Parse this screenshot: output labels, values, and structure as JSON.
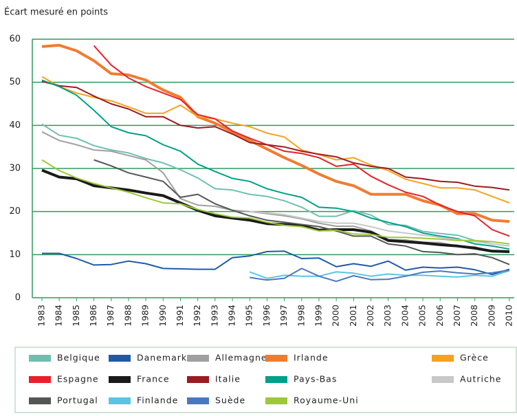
{
  "chart_data": {
    "type": "line",
    "title": "Écart mesuré en points",
    "categories": [
      "1983",
      "1984",
      "1985",
      "1986",
      "1987",
      "1988",
      "1989",
      "1990",
      "1991",
      "1992",
      "1993",
      "1994",
      "1995",
      "1996",
      "1997",
      "1998",
      "1999",
      "2000",
      "2001",
      "2002",
      "2003",
      "2004",
      "2005",
      "2006",
      "2007",
      "2008",
      "2009",
      "2010"
    ],
    "ylim": [
      0,
      60
    ],
    "yticks": [
      0,
      10,
      20,
      30,
      40,
      50,
      60
    ],
    "grid": true,
    "series": [
      {
        "name": "Belgique",
        "color": "#6fbfb0",
        "width": 2,
        "values": [
          40.3,
          37.7,
          37,
          35.3,
          34.3,
          33.6,
          32.3,
          31.3,
          29.7,
          27.8,
          25.3,
          25,
          24,
          23.5,
          22.5,
          21,
          18.9,
          18.9,
          20.2,
          19.2,
          17,
          16.8,
          15.4,
          14.9,
          14.5,
          13.3,
          12.5,
          12.0
        ]
      },
      {
        "name": "Danemark",
        "color": "#1f5aa6",
        "width": 2,
        "values": [
          10.3,
          10.3,
          9.1,
          7.6,
          7.7,
          8.5,
          7.9,
          6.8,
          6.7,
          6.6,
          6.6,
          9.3,
          9.7,
          10.7,
          10.8,
          9.1,
          9.2,
          7.2,
          7.9,
          7.3,
          8.5,
          6.4,
          7.1,
          6.9,
          7.1,
          6.5,
          5.4,
          6.6
        ]
      },
      {
        "name": "Allemagne",
        "color": "#a0a0a0",
        "width": 2,
        "values": [
          38.5,
          36.5,
          35.5,
          34.3,
          34,
          33,
          32,
          29,
          23,
          21.5,
          21.2,
          20.3,
          20,
          19.5,
          19,
          18.3,
          17.3,
          16.6,
          16.6,
          15.5,
          13.5,
          13.4,
          12.9,
          12.8,
          12,
          11.8,
          10.7,
          10.5
        ]
      },
      {
        "name": "Irlande",
        "color": "#f07c30",
        "width": 4,
        "values": [
          58.3,
          58.6,
          57.3,
          55,
          52,
          51.7,
          50.5,
          48.2,
          46.5,
          42,
          40.5,
          38.5,
          36.5,
          34.5,
          32.5,
          30.7,
          28.7,
          27,
          26,
          24,
          24,
          24,
          22.5,
          21.5,
          19.5,
          19.5,
          18,
          17.7
        ]
      },
      {
        "name": "Grèce",
        "color": "#f6a21e",
        "width": 2,
        "values": [
          51.3,
          49,
          47.5,
          46.5,
          45.7,
          44.3,
          42.8,
          42.8,
          44.7,
          42,
          41.5,
          40.5,
          39.7,
          38.2,
          37.3,
          34.3,
          33.2,
          32,
          32.5,
          30.8,
          29.5,
          27.5,
          26.5,
          25.5,
          25.5,
          25,
          23.5,
          22
        ]
      },
      {
        "name": "Espagne",
        "color": "#e8202a",
        "width": 2,
        "values": [
          null,
          null,
          null,
          58.5,
          54,
          51,
          49,
          47.5,
          46,
          42.5,
          41.5,
          38.7,
          37,
          35.5,
          34,
          33.5,
          32.5,
          30.5,
          31,
          28.2,
          26.2,
          24.5,
          23.5,
          21.5,
          20,
          19,
          15.8,
          14.3
        ]
      },
      {
        "name": "France",
        "color": "#1a1a1a",
        "width": 4,
        "values": [
          29.6,
          28,
          27.6,
          26,
          25.5,
          25,
          24.3,
          23.7,
          22,
          20.3,
          19,
          18.5,
          18,
          17.2,
          17,
          16.7,
          15.7,
          15.8,
          15.8,
          15.2,
          13.3,
          13,
          12.7,
          12.3,
          12,
          11.5,
          10.8,
          10.7
        ]
      },
      {
        "name": "Italie",
        "color": "#9b1b1f",
        "width": 2,
        "values": [
          50.2,
          49.2,
          48.8,
          46.8,
          45,
          43.8,
          42,
          42,
          40,
          39.4,
          39.7,
          38,
          36,
          35.5,
          35,
          34,
          33.3,
          32.7,
          31.3,
          30.5,
          30,
          28,
          27.6,
          27,
          26.8,
          25.9,
          25.6,
          25
        ]
      },
      {
        "name": "Pays-Bas",
        "color": "#00a08a",
        "width": 2,
        "values": [
          50.5,
          49,
          47,
          43.5,
          39.7,
          38.3,
          37.6,
          35.5,
          34,
          31,
          29.3,
          27.7,
          27,
          25.3,
          24.2,
          23.3,
          21,
          20.8,
          20,
          18.5,
          17.5,
          16.5,
          15,
          14.3,
          13.7,
          12.5,
          12,
          11.3
        ]
      },
      {
        "name": "Autriche",
        "color": "#c8c8c8",
        "width": 2,
        "values": [
          null,
          null,
          null,
          null,
          null,
          null,
          null,
          null,
          null,
          null,
          null,
          null,
          20,
          19.7,
          19.3,
          18.5,
          17.7,
          17.3,
          17.3,
          16.5,
          15.5,
          15,
          14.5,
          14,
          13.5,
          13,
          12.5,
          12
        ]
      },
      {
        "name": "Portugal",
        "color": "#555555",
        "width": 2,
        "values": [
          null,
          null,
          null,
          32,
          30.6,
          29,
          28,
          27,
          23.3,
          24,
          21.8,
          20.3,
          19,
          18,
          17.5,
          17,
          16.5,
          15.5,
          14.3,
          14.3,
          12.5,
          12,
          10.7,
          10.5,
          10,
          10.2,
          9.3,
          7.7
        ]
      },
      {
        "name": "Finlande",
        "color": "#5bc4e0",
        "width": 2,
        "values": [
          null,
          null,
          null,
          null,
          null,
          null,
          null,
          null,
          null,
          null,
          null,
          null,
          6,
          4.5,
          5.2,
          5,
          5,
          6,
          5.7,
          5,
          5.5,
          5.2,
          5.2,
          5,
          4.8,
          5.2,
          5,
          6.3
        ]
      },
      {
        "name": "Suède",
        "color": "#4a78c0",
        "width": 2,
        "values": [
          null,
          null,
          null,
          null,
          null,
          null,
          null,
          null,
          null,
          null,
          null,
          null,
          4.7,
          4.1,
          4.5,
          6.8,
          5,
          3.8,
          5.1,
          4.2,
          4.3,
          5,
          5.9,
          6.2,
          5.8,
          5.5,
          5.8,
          6.4
        ]
      },
      {
        "name": "Royaume-Uni",
        "color": "#9cc83a",
        "width": 2,
        "values": [
          32,
          29.5,
          27.8,
          26.5,
          25.5,
          24.5,
          23.2,
          22,
          21.8,
          20.5,
          19.5,
          18.7,
          18.5,
          17.5,
          16.8,
          16.5,
          15.5,
          15.7,
          14.8,
          14.7,
          14,
          14,
          13.8,
          13.6,
          13.3,
          13.3,
          13,
          12.5
        ]
      }
    ]
  }
}
